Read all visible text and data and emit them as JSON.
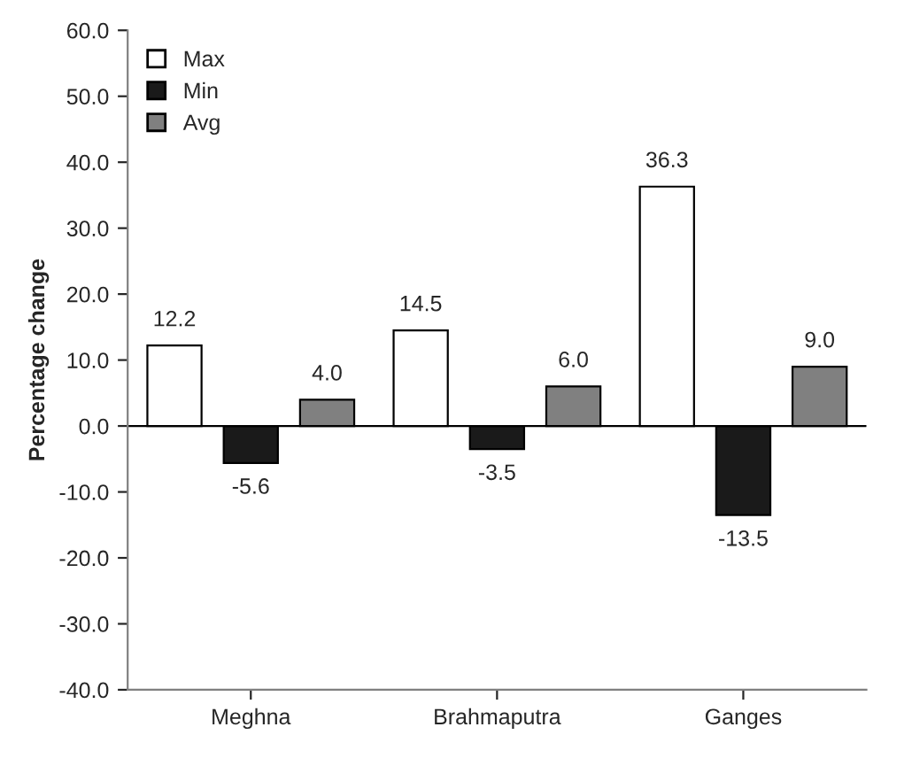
{
  "chart_data": {
    "type": "bar",
    "ylabel": "Percentage change",
    "categories": [
      "Meghna",
      "Brahmaputra",
      "Ganges"
    ],
    "series": [
      {
        "name": "Max",
        "color": "#ffffff",
        "values": [
          12.2,
          14.5,
          36.3
        ],
        "value_labels": [
          "12.2",
          "14.5",
          "36.3"
        ]
      },
      {
        "name": "Min",
        "color": "#1a1a1a",
        "values": [
          -5.6,
          -3.5,
          -13.5
        ],
        "value_labels": [
          "-5.6",
          "-3.5",
          "-13.5"
        ]
      },
      {
        "name": "Avg",
        "color": "#808080",
        "values": [
          4.0,
          6.0,
          9.0
        ],
        "value_labels": [
          "4.0",
          "6.0",
          "9.0"
        ]
      }
    ],
    "ylim": [
      -40,
      60
    ],
    "yticks": [
      {
        "value": -40,
        "label": "-40.0"
      },
      {
        "value": -30,
        "label": "-30.0"
      },
      {
        "value": -20,
        "label": "-20.0"
      },
      {
        "value": -10,
        "label": "-10.0"
      },
      {
        "value": 0,
        "label": "0.0"
      },
      {
        "value": 10,
        "label": "10.0"
      },
      {
        "value": 20,
        "label": "20.0"
      },
      {
        "value": 30,
        "label": "30.0"
      },
      {
        "value": 40,
        "label": "40.0"
      },
      {
        "value": 50,
        "label": "50.0"
      },
      {
        "value": 60,
        "label": "60.0"
      }
    ],
    "ref_lines": [
      {
        "axis": "y",
        "value": 0,
        "color": "#000000"
      }
    ],
    "grid": false,
    "legend": "top left"
  }
}
